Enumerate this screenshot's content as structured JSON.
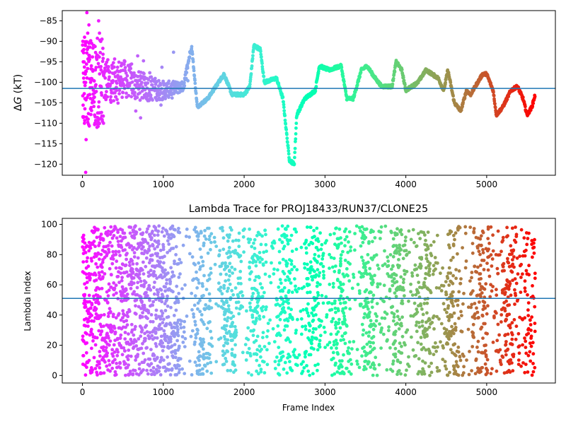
{
  "chart_data": [
    {
      "type": "scatter",
      "title": "",
      "xlabel": "",
      "ylabel": "ΔG (kT)",
      "ylabel_prefix": "Δ",
      "ylabel_var": "G",
      "ylabel_suffix": " (kT)",
      "xlim": [
        -250,
        5850
      ],
      "ylim": [
        -122.7,
        -82.5
      ],
      "xticks": [
        0,
        1000,
        2000,
        3000,
        4000,
        5000
      ],
      "yticks": [
        -85,
        -90,
        -95,
        -100,
        -105,
        -110,
        -115,
        -120
      ],
      "hline": -101.5,
      "hline_color": "#1f77b4",
      "colormap": "rainbow",
      "colormap_direction": "red at frame 0 to violet at last frame",
      "n_frames": 5600,
      "trace_keypoints": [
        [
          0,
          -99
        ],
        [
          250,
          -100
        ],
        [
          500,
          -99
        ],
        [
          700,
          -101
        ],
        [
          1000,
          -102
        ],
        [
          1250,
          -101
        ],
        [
          1350,
          -91
        ],
        [
          1420,
          -106
        ],
        [
          1550,
          -104
        ],
        [
          1650,
          -101
        ],
        [
          1750,
          -98
        ],
        [
          1850,
          -103
        ],
        [
          2000,
          -103
        ],
        [
          2070,
          -101
        ],
        [
          2120,
          -91
        ],
        [
          2200,
          -92
        ],
        [
          2250,
          -100
        ],
        [
          2400,
          -99
        ],
        [
          2480,
          -104
        ],
        [
          2560,
          -119
        ],
        [
          2620,
          -120
        ],
        [
          2650,
          -108
        ],
        [
          2750,
          -104
        ],
        [
          2880,
          -102
        ],
        [
          2930,
          -96
        ],
        [
          3050,
          -97
        ],
        [
          3200,
          -96
        ],
        [
          3270,
          -104
        ],
        [
          3350,
          -104
        ],
        [
          3450,
          -97
        ],
        [
          3520,
          -96
        ],
        [
          3620,
          -99
        ],
        [
          3700,
          -101
        ],
        [
          3750,
          -101
        ],
        [
          3830,
          -101
        ],
        [
          3880,
          -95
        ],
        [
          3950,
          -97
        ],
        [
          4000,
          -102
        ],
        [
          4150,
          -100
        ],
        [
          4250,
          -97
        ],
        [
          4400,
          -99
        ],
        [
          4470,
          -102
        ],
        [
          4520,
          -97
        ],
        [
          4600,
          -105
        ],
        [
          4680,
          -107
        ],
        [
          4750,
          -102
        ],
        [
          4800,
          -103
        ],
        [
          4950,
          -98
        ],
        [
          5000,
          -98
        ],
        [
          5080,
          -102
        ],
        [
          5120,
          -108
        ],
        [
          5200,
          -106
        ],
        [
          5300,
          -102
        ],
        [
          5380,
          -101
        ],
        [
          5450,
          -104
        ],
        [
          5500,
          -108
        ],
        [
          5560,
          -106
        ],
        [
          5600,
          -103
        ]
      ],
      "early_scatter_points": [
        [
          5,
          -90
        ],
        [
          10,
          -95
        ],
        [
          15,
          -99
        ],
        [
          20,
          -100
        ],
        [
          25,
          -110
        ],
        [
          30,
          -104
        ],
        [
          35,
          -98
        ],
        [
          40,
          -122
        ],
        [
          45,
          -114
        ],
        [
          55,
          -83
        ],
        [
          60,
          -92
        ],
        [
          65,
          -88
        ],
        [
          70,
          -109
        ],
        [
          80,
          -86
        ],
        [
          85,
          -94
        ],
        [
          90,
          -103
        ],
        [
          100,
          -100
        ],
        [
          110,
          -96
        ],
        [
          120,
          -105
        ],
        [
          140,
          -91
        ],
        [
          150,
          -108
        ],
        [
          160,
          -97
        ],
        [
          180,
          -111
        ],
        [
          200,
          -85
        ],
        [
          210,
          -88
        ],
        [
          230,
          -101
        ],
        [
          260,
          -110
        ]
      ]
    },
    {
      "type": "scatter",
      "title": "Lambda Trace for PROJ18433/RUN37/CLONE25",
      "xlabel": "Frame Index",
      "ylabel": "Lambda Index",
      "xlim": [
        -250,
        5850
      ],
      "ylim": [
        -5,
        104
      ],
      "xticks": [
        0,
        1000,
        2000,
        3000,
        4000,
        5000
      ],
      "yticks": [
        0,
        20,
        40,
        60,
        80,
        100
      ],
      "hline": 51,
      "hline_color": "#1f77b4",
      "colormap": "rainbow",
      "colormap_direction": "red at frame 0 to violet at last frame",
      "n_frames": 5600,
      "value_range": [
        0,
        99
      ],
      "pattern": "points fill 0-99 in vertical bands, denser near frame 0"
    }
  ]
}
